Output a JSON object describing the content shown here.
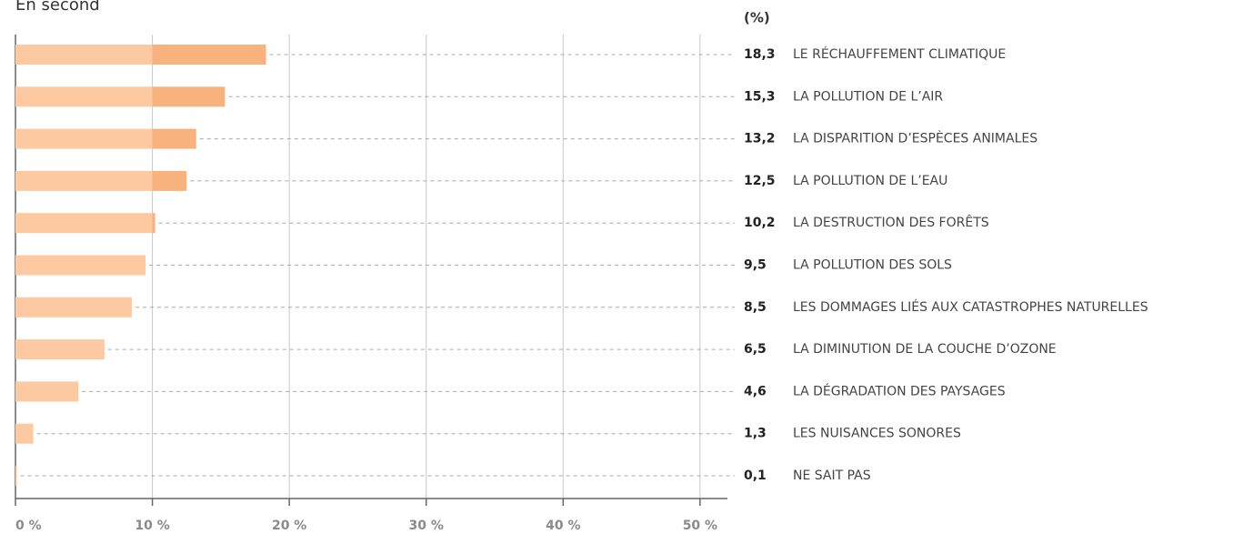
{
  "chart_data": {
    "type": "bar",
    "orientation": "horizontal",
    "title": "En second",
    "value_axis_label": "(%)",
    "categories": [
      "LE RÉCHAUFFEMENT CLIMATIQUE",
      "LA POLLUTION DE L’AIR",
      "LA DISPARITION D’ESPÈCES ANIMALES",
      "LA POLLUTION DE L’EAU",
      "LA DESTRUCTION DES FORÊTS",
      "LA POLLUTION DES SOLS",
      "LES DOMMAGES LIÉS AUX CATASTROPHES NATURELLES",
      "LA DIMINUTION DE LA COUCHE D’OZONE",
      "LA DÉGRADATION DES PAYSAGES",
      "LES NUISANCES SONORES",
      "NE SAIT PAS"
    ],
    "values": [
      18.3,
      15.3,
      13.2,
      12.5,
      10.2,
      9.5,
      8.5,
      6.5,
      4.6,
      1.3,
      0.1
    ],
    "value_labels": [
      "18,3",
      "15,3",
      "13,2",
      "12,5",
      "10,2",
      "9,5",
      "8,5",
      "6,5",
      "4,6",
      "1,3",
      "0,1"
    ],
    "colors": [
      "#fcc9a1",
      "#f8b27e"
    ],
    "xlim": [
      0,
      52
    ],
    "xticks": [
      {
        "value": 0,
        "label": "0 %"
      },
      {
        "value": 10,
        "label": "10 %"
      },
      {
        "value": 20,
        "label": "20 %"
      },
      {
        "value": 30,
        "label": "30 %"
      },
      {
        "value": 40,
        "label": "40 %"
      },
      {
        "value": 50,
        "label": "50 %"
      }
    ],
    "grid": true
  }
}
